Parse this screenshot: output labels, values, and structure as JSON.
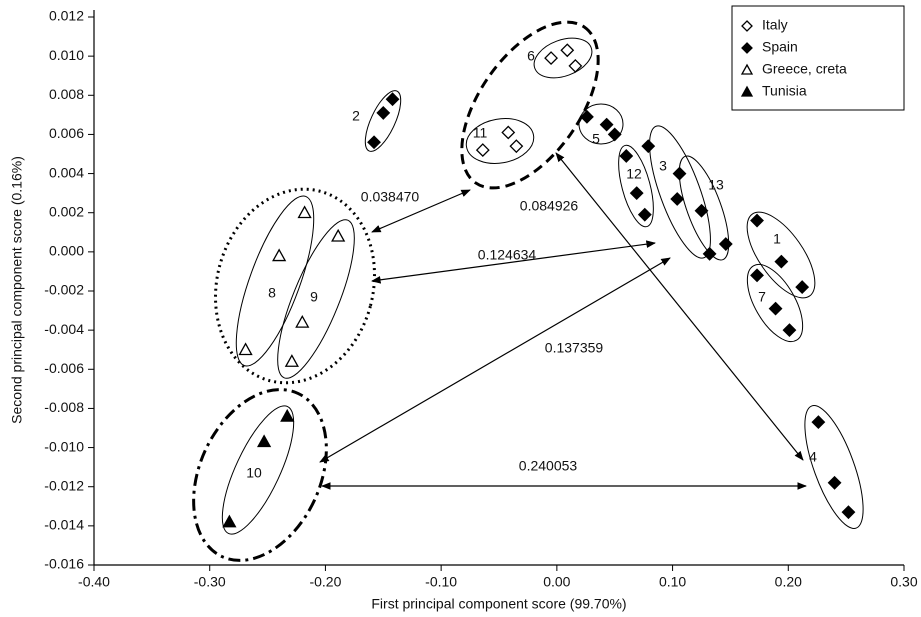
{
  "chart_data": {
    "type": "scatter",
    "xlabel": "First principal component score (99.70%)",
    "ylabel": "Second principal component score (0.16%)",
    "xlim": [
      -0.4,
      0.3
    ],
    "ylim": [
      -0.016,
      0.012
    ],
    "xticks": [
      {
        "value": -0.4,
        "label": "-0.40"
      },
      {
        "value": -0.3,
        "label": "-0.30"
      },
      {
        "value": -0.2,
        "label": "-0.20"
      },
      {
        "value": -0.1,
        "label": "-0.10"
      },
      {
        "value": 0,
        "label": "0.00"
      },
      {
        "value": 0.1,
        "label": "0.10"
      },
      {
        "value": 0.2,
        "label": "0.20"
      },
      {
        "value": 0.3,
        "label": "0.30"
      }
    ],
    "yticks": [
      0.012,
      {
        "value": 0.01,
        "label": "0.010"
      },
      0.008,
      0.006,
      0.004,
      0.002,
      {
        "value": 0,
        "label": "0.000"
      },
      -0.002,
      -0.004,
      -0.006,
      -0.008,
      {
        "value": -0.01,
        "label": "-0.010"
      },
      -0.012,
      -0.014,
      -0.016
    ],
    "legend": "upper right",
    "series": [
      {
        "name": "Italy",
        "color": "#000000",
        "marker": "diamond",
        "filled": false,
        "x": [
          -0.005,
          0.009,
          0.016,
          -0.064,
          -0.042,
          -0.035
        ],
        "values": [
          0.0099,
          0.0103,
          0.0095,
          0.0052,
          0.0061,
          0.0054
        ]
      },
      {
        "name": "Spain",
        "color": "#000000",
        "marker": "diamond",
        "filled": true,
        "x": [
          -0.158,
          -0.142,
          -0.15,
          0.026,
          0.043,
          0.05,
          0.06,
          0.069,
          0.076,
          0.079,
          0.106,
          0.104,
          0.125,
          0.132,
          0.146,
          0.173,
          0.194,
          0.212,
          0.173,
          0.189,
          0.201,
          0.226,
          0.24,
          0.252
        ],
        "values": [
          0.0056,
          0.0078,
          0.0071,
          0.0069,
          0.0065,
          0.006,
          0.0049,
          0.003,
          0.0019,
          0.0054,
          0.004,
          0.0027,
          0.0021,
          -0.0001,
          0.0004,
          0.0016,
          -0.0005,
          -0.0018,
          -0.0012,
          -0.0029,
          -0.004,
          -0.0087,
          -0.0118,
          -0.0133
        ]
      },
      {
        "name": "Greece, creta",
        "color": "#000000",
        "marker": "triangle",
        "filled": false,
        "x": [
          -0.218,
          -0.24,
          -0.269,
          -0.189,
          -0.22,
          -0.229
        ],
        "values": [
          0.002,
          -0.0002,
          -0.005,
          0.0008,
          -0.0036,
          -0.0056
        ]
      },
      {
        "name": "Tunisia",
        "color": "#000000",
        "marker": "triangle",
        "filled": true,
        "x": [
          -0.233,
          -0.253,
          -0.283
        ],
        "values": [
          -0.0084,
          -0.0097,
          -0.0138
        ]
      }
    ],
    "annotations": [
      "2",
      "6",
      "11",
      "5",
      "12",
      "3",
      "13",
      "1",
      "7",
      "4",
      "8",
      "9",
      "10",
      "0.038470",
      "0.124634",
      "0.137359",
      "0.240053",
      "0.084926"
    ]
  }
}
